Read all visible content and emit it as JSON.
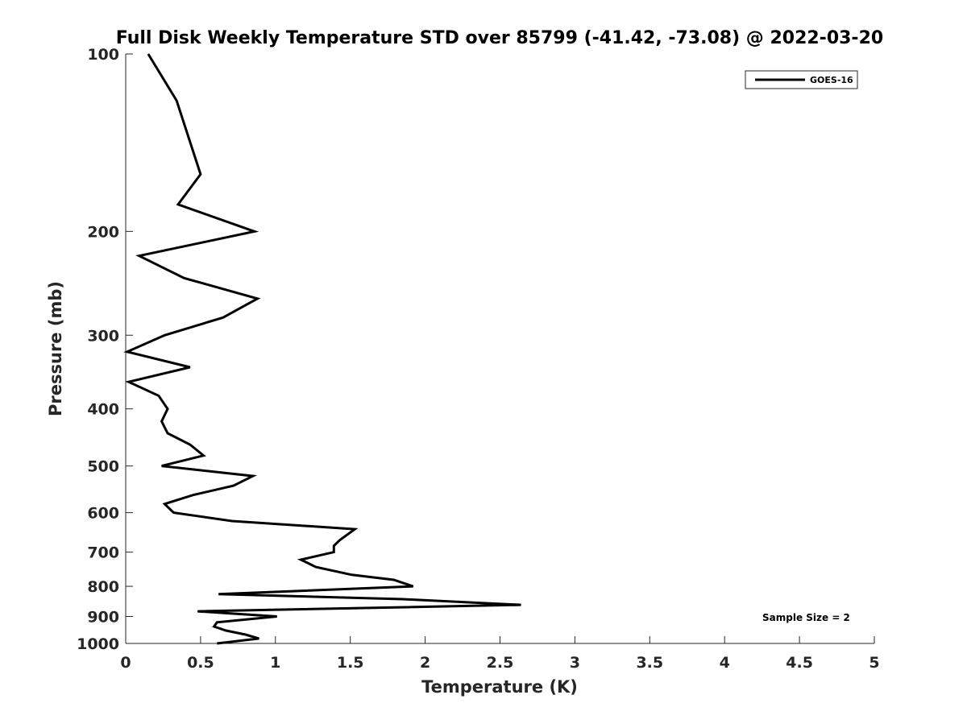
{
  "chart_data": {
    "type": "line",
    "title": "Full Disk Weekly Temperature STD over 85799 (-41.42, -73.08) @ 2022-03-20",
    "xlabel": "Temperature (K)",
    "ylabel": "Pressure (mb)",
    "xlim": [
      0,
      5
    ],
    "ylim": [
      100,
      1000
    ],
    "yscale": "log",
    "yreversed": true,
    "grid": false,
    "xticks": [
      "0",
      "0.5",
      "1",
      "1.5",
      "2",
      "2.5",
      "3",
      "3.5",
      "4",
      "4.5",
      "5"
    ],
    "xtick_values": [
      0,
      0.5,
      1,
      1.5,
      2,
      2.5,
      3,
      3.5,
      4,
      4.5,
      5
    ],
    "yticks": [
      "100",
      "200",
      "300",
      "400",
      "500",
      "600",
      "700",
      "800",
      "900",
      "1000"
    ],
    "ytick_values": [
      100,
      200,
      300,
      400,
      500,
      600,
      700,
      800,
      900,
      1000
    ],
    "legend_position": "top-right",
    "annotation": "Sample Size = 2",
    "series": [
      {
        "name": "GOES-16",
        "color": "#000000",
        "points": [
          [
            0.15,
            100
          ],
          [
            0.34,
            120
          ],
          [
            0.5,
            160
          ],
          [
            0.35,
            180
          ],
          [
            0.86,
            200
          ],
          [
            0.09,
            220
          ],
          [
            0.39,
            240
          ],
          [
            0.88,
            260
          ],
          [
            0.65,
            280
          ],
          [
            0.26,
            300
          ],
          [
            0.01,
            320
          ],
          [
            0.43,
            340
          ],
          [
            0.02,
            360
          ],
          [
            0.22,
            380
          ],
          [
            0.28,
            400
          ],
          [
            0.24,
            420
          ],
          [
            0.28,
            440
          ],
          [
            0.43,
            460
          ],
          [
            0.52,
            480
          ],
          [
            0.24,
            500
          ],
          [
            0.85,
            520
          ],
          [
            0.72,
            540
          ],
          [
            0.45,
            560
          ],
          [
            0.26,
            580
          ],
          [
            0.32,
            600
          ],
          [
            0.71,
            620
          ],
          [
            1.53,
            640
          ],
          [
            1.43,
            668
          ],
          [
            1.39,
            683
          ],
          [
            1.39,
            700
          ],
          [
            1.17,
            721
          ],
          [
            1.27,
            742
          ],
          [
            1.51,
            765
          ],
          [
            1.79,
            780
          ],
          [
            1.92,
            800
          ],
          [
            0.62,
            825
          ],
          [
            1.85,
            841
          ],
          [
            2.64,
            860
          ],
          [
            0.48,
            882
          ],
          [
            1.01,
            900
          ],
          [
            0.61,
            921
          ],
          [
            0.59,
            936
          ],
          [
            0.67,
            951
          ],
          [
            0.8,
            966
          ],
          [
            0.89,
            981
          ],
          [
            0.61,
            1000
          ]
        ]
      }
    ]
  }
}
